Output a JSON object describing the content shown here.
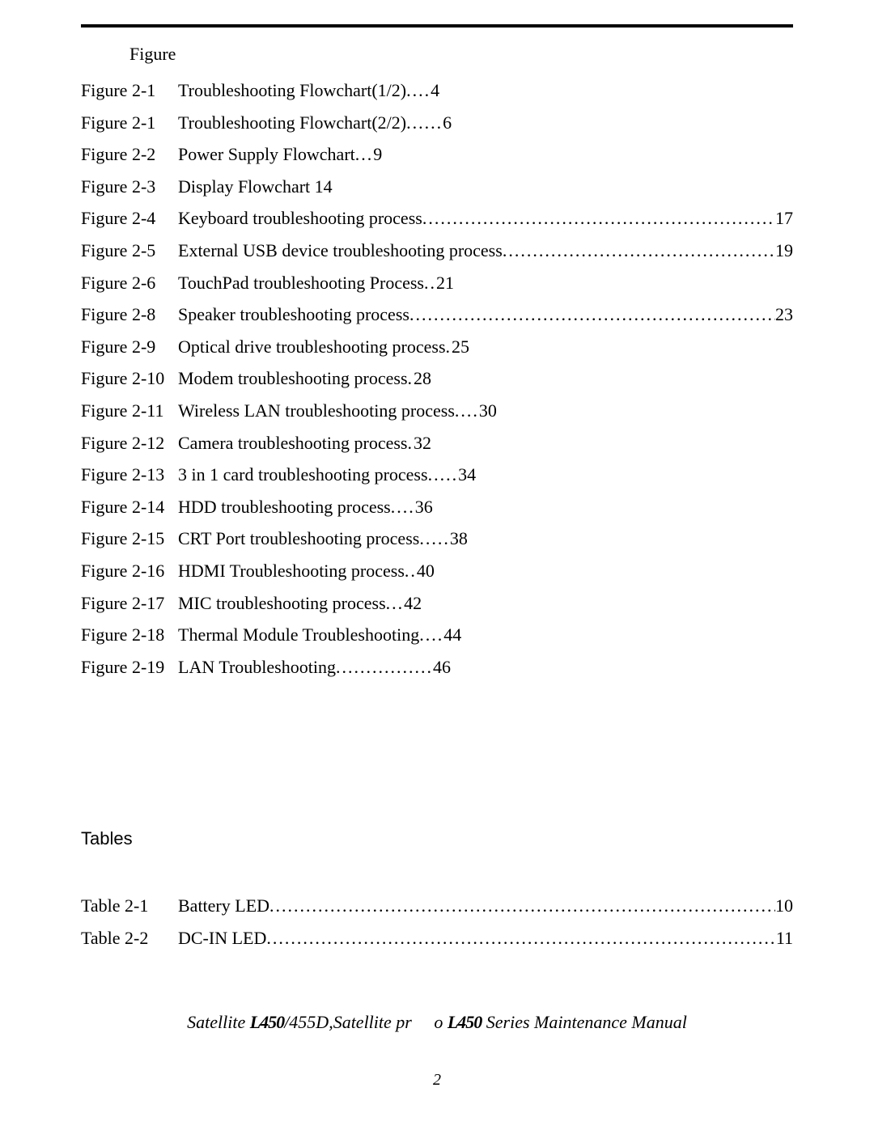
{
  "figure_header": "Figure",
  "figures": [
    {
      "label": "Figure 2-1",
      "title": "Troubleshooting Flowchart(1/2)",
      "dots": " ....",
      "page": "4",
      "fill": false
    },
    {
      "label": "Figure 2-1",
      "title": "Troubleshooting Flowchart(2/2)",
      "dots": "......",
      "page": "6",
      "fill": false
    },
    {
      "label": "Figure 2-2",
      "title": "Power Supply Flowchart",
      "dots": " ...",
      "page": "9",
      "fill": false
    },
    {
      "label": "Figure 2-3",
      "title": "Display Flowchart 14",
      "dots": "",
      "page": "",
      "fill": false
    },
    {
      "label": "Figure 2-4",
      "title": "Keyboard troubleshooting process",
      "dots": "",
      "page": "17",
      "fill": true
    },
    {
      "label": "Figure 2-5",
      "title": "External USB device troubleshooting process",
      "dots": "",
      "page": "19",
      "fill": true
    },
    {
      "label": "Figure 2-6",
      "title": "TouchPad troubleshooting Process",
      "dots": " ..",
      "page": "21",
      "fill": false
    },
    {
      "label": "Figure 2-8",
      "title": "Speaker troubleshooting process",
      "dots": "",
      "page": "23",
      "fill": true
    },
    {
      "label": "Figure 2-9",
      "title": "Optical drive troubleshooting process",
      "dots": " .",
      "page": "25",
      "fill": false
    },
    {
      "label": "Figure 2-10",
      "title": "Modem troubleshooting process",
      "dots": "  .",
      "page": "28",
      "fill": false
    },
    {
      "label": "Figure 2-11",
      "title": "Wireless LAN troubleshooting process",
      "dots": " ....",
      "page": "30",
      "fill": false
    },
    {
      "label": "Figure 2-12",
      "title": "Camera troubleshooting process",
      "dots": " . ",
      "page": "32",
      "fill": false
    },
    {
      "label": "Figure 2-13",
      "title": "3 in 1 card troubleshooting process",
      "dots": ".....",
      "page": "34",
      "fill": false
    },
    {
      "label": "Figure 2-14",
      "title": "HDD troubleshooting process",
      "dots": "....",
      "page": "36",
      "fill": false
    },
    {
      "label": "Figure 2-15",
      "title": "CRT Port troubleshooting process",
      "dots": " .....",
      "page": "38",
      "fill": false
    },
    {
      "label": "Figure 2-16",
      "title": "HDMI Troubleshooting process",
      "dots": " ..",
      "page": "40",
      "fill": false
    },
    {
      "label": "Figure 2-17",
      "title": "MIC troubleshooting process",
      "dots": " ...",
      "page": "42",
      "fill": false
    },
    {
      "label": "Figure 2-18",
      "title": "Thermal  Module Troubleshooting",
      "dots": "....",
      "page": "44",
      "fill": false
    },
    {
      "label": "Figure 2-19",
      "title": "LAN Troubleshooting",
      "dots": " ................",
      "page": "46",
      "fill": false
    }
  ],
  "tables_header": "Tables",
  "tables": [
    {
      "label": "Table 2-1",
      "title": "Battery LED",
      "page": "10",
      "fill": true
    },
    {
      "label": "Table 2-2",
      "title": "DC-IN LED",
      "page": "11",
      "fill": true
    }
  ],
  "footer": {
    "pre1": "Satellite ",
    "l450_1": "L450",
    "mid1": "/455D,Satellite pr",
    "gap": "     ",
    "mid2": "o ",
    "l450_2": "L450",
    "post": " Series Maintenance Manual"
  },
  "page_number": "2",
  "colors": {
    "text": "#000000",
    "background": "#ffffff"
  },
  "typography": {
    "body_family": "Times New Roman",
    "body_size_pt": 16,
    "tables_header_family": "Arial"
  }
}
